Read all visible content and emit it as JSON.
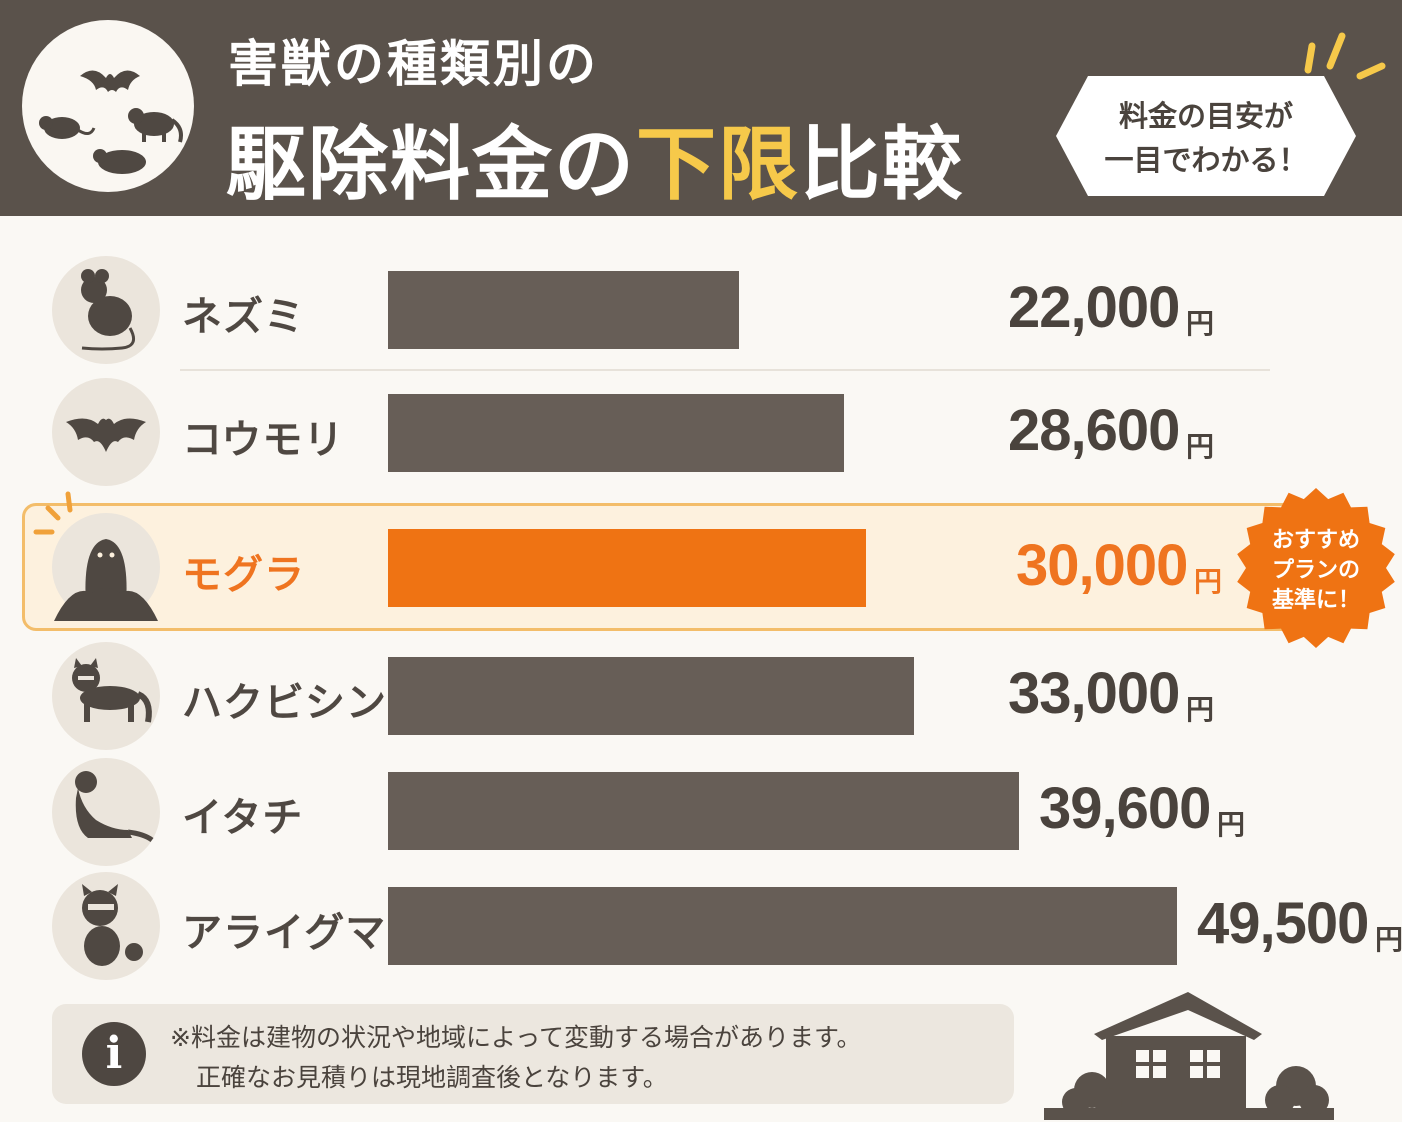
{
  "header": {
    "title_line1": "害獣の種類別の",
    "title_line2_before": "駆除料金の",
    "title_line2_highlight": "下限",
    "title_line2_after": "比較",
    "badge_line1": "料金の目安が",
    "badge_line2": "一目でわかる！",
    "emblem_icons": [
      "bat-icon",
      "rat-icon",
      "civet-icon",
      "mole-icon"
    ]
  },
  "colors": {
    "header_bg": "#5a524b",
    "bar": "#675e57",
    "highlight": "#ef7313",
    "title_highlight": "#f6c94a"
  },
  "chart_data": {
    "type": "bar",
    "orientation": "horizontal",
    "categories": [
      "ネズミ",
      "コウモリ",
      "モグラ",
      "ハクビシン",
      "イタチ",
      "アライグマ"
    ],
    "values": [
      22000,
      28600,
      30000,
      33000,
      39600,
      49500
    ],
    "value_labels": [
      "22,000",
      "28,600",
      "30,000",
      "33,000",
      "39,600",
      "49,500"
    ],
    "unit": "円",
    "highlighted_index": 2,
    "icons": [
      "rat-icon",
      "bat-icon",
      "mole-icon",
      "civet-icon",
      "weasel-icon",
      "raccoon-icon"
    ]
  },
  "recommend_badge": {
    "line1": "おすすめ",
    "line2": "プランの",
    "line3": "基準に！"
  },
  "note": {
    "line1": "※料金は建物の状況や地域によって変動する場合があります。",
    "line2": "正確なお見積りは現地調査後となります。"
  }
}
